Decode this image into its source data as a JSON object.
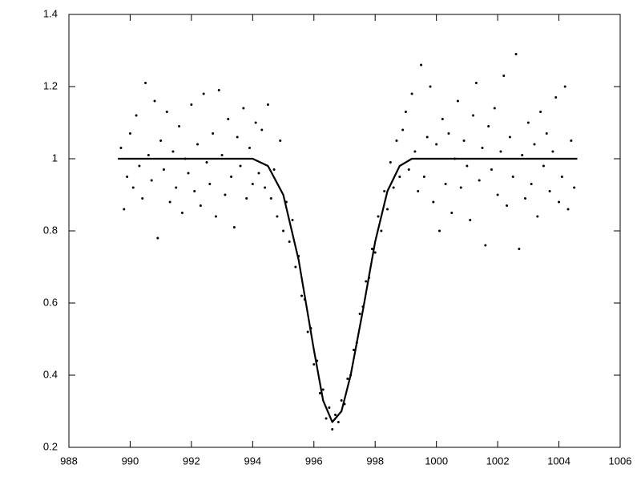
{
  "chart_data": {
    "type": "scatter",
    "xlim": [
      988,
      1006
    ],
    "ylim": [
      0.2,
      1.4
    ],
    "xticks": [
      988,
      990,
      992,
      994,
      996,
      998,
      1000,
      1002,
      1004,
      1006
    ],
    "yticks": [
      0.2,
      0.4,
      0.6,
      0.8,
      1,
      1.2,
      1.4
    ],
    "series": [
      {
        "type": "scatter",
        "color": "#000000",
        "x": [
          989.7,
          989.8,
          989.9,
          990.0,
          990.1,
          990.2,
          990.3,
          990.4,
          990.5,
          990.6,
          990.7,
          990.8,
          990.9,
          991.0,
          991.1,
          991.2,
          991.3,
          991.4,
          991.5,
          991.6,
          991.7,
          991.8,
          991.9,
          992.0,
          992.1,
          992.2,
          992.3,
          992.4,
          992.5,
          992.6,
          992.7,
          992.8,
          992.9,
          993.0,
          993.1,
          993.2,
          993.3,
          993.4,
          993.5,
          993.6,
          993.7,
          993.8,
          993.9,
          994.0,
          994.1,
          994.2,
          994.3,
          994.4,
          994.5,
          994.6,
          994.7,
          994.8,
          994.9,
          995.0,
          995.1,
          995.2,
          995.3,
          995.4,
          995.5,
          995.6,
          995.7,
          995.8,
          995.9,
          996.0,
          996.1,
          996.2,
          996.3,
          996.4,
          996.5,
          996.6,
          996.7,
          996.8,
          996.9,
          997.0,
          997.1,
          997.2,
          997.3,
          997.4,
          997.5,
          997.6,
          997.7,
          997.8,
          997.9,
          998.0,
          998.1,
          998.2,
          998.3,
          998.4,
          998.5,
          998.6,
          998.7,
          998.8,
          998.9,
          999.0,
          999.1,
          999.2,
          999.3,
          999.4,
          999.5,
          999.6,
          999.7,
          999.8,
          999.9,
          1000.0,
          1000.1,
          1000.2,
          1000.3,
          1000.4,
          1000.5,
          1000.6,
          1000.7,
          1000.8,
          1000.9,
          1001.0,
          1001.1,
          1001.2,
          1001.3,
          1001.4,
          1001.5,
          1001.6,
          1001.7,
          1001.8,
          1001.9,
          1002.0,
          1002.1,
          1002.2,
          1002.3,
          1002.4,
          1002.5,
          1002.6,
          1002.7,
          1002.8,
          1002.9,
          1003.0,
          1003.1,
          1003.2,
          1003.3,
          1003.4,
          1003.5,
          1003.6,
          1003.7,
          1003.8,
          1003.9,
          1004.0,
          1004.1,
          1004.2,
          1004.3,
          1004.4,
          1004.5
        ],
        "values": [
          1.03,
          0.86,
          0.95,
          1.07,
          0.92,
          1.12,
          0.98,
          0.89,
          1.21,
          1.01,
          0.94,
          1.16,
          0.78,
          1.05,
          0.97,
          1.13,
          0.88,
          1.02,
          0.92,
          1.09,
          0.85,
          1.0,
          0.96,
          1.15,
          0.91,
          1.04,
          0.87,
          1.18,
          0.99,
          0.93,
          1.07,
          0.84,
          1.19,
          1.01,
          0.9,
          1.11,
          0.95,
          0.81,
          1.06,
          0.98,
          1.14,
          0.89,
          1.03,
          0.93,
          1.1,
          0.96,
          1.08,
          0.92,
          1.15,
          0.89,
          0.97,
          0.84,
          1.05,
          0.8,
          0.88,
          0.77,
          0.83,
          0.7,
          0.73,
          0.62,
          0.61,
          0.52,
          0.53,
          0.43,
          0.44,
          0.35,
          0.36,
          0.28,
          0.31,
          0.25,
          0.29,
          0.27,
          0.33,
          0.32,
          0.39,
          0.4,
          0.47,
          0.49,
          0.57,
          0.59,
          0.66,
          0.67,
          0.75,
          0.74,
          0.84,
          0.8,
          0.91,
          0.86,
          0.99,
          0.92,
          1.05,
          0.95,
          1.08,
          1.13,
          0.97,
          1.18,
          1.02,
          0.91,
          1.26,
          0.95,
          1.06,
          1.2,
          0.88,
          1.04,
          0.8,
          1.11,
          0.93,
          1.07,
          0.85,
          1.0,
          1.16,
          0.92,
          1.05,
          0.98,
          0.83,
          1.12,
          1.21,
          0.94,
          1.03,
          0.76,
          1.09,
          0.97,
          1.14,
          0.9,
          1.02,
          1.23,
          0.87,
          1.06,
          0.95,
          1.29,
          0.75,
          1.01,
          0.89,
          1.1,
          0.93,
          1.04,
          0.84,
          1.13,
          0.98,
          1.07,
          0.91,
          1.02,
          1.17,
          0.88,
          0.95,
          1.2,
          0.86,
          1.05,
          0.92
        ]
      },
      {
        "type": "line",
        "color": "#000000",
        "x": [
          989.6,
          994.0,
          994.5,
          995.0,
          995.5,
          996.0,
          996.3,
          996.6,
          996.9,
          997.2,
          997.6,
          998.0,
          998.4,
          998.8,
          999.2,
          1004.6
        ],
        "values": [
          1,
          1,
          0.98,
          0.9,
          0.72,
          0.47,
          0.33,
          0.27,
          0.3,
          0.4,
          0.58,
          0.77,
          0.91,
          0.98,
          1,
          1
        ]
      }
    ]
  }
}
